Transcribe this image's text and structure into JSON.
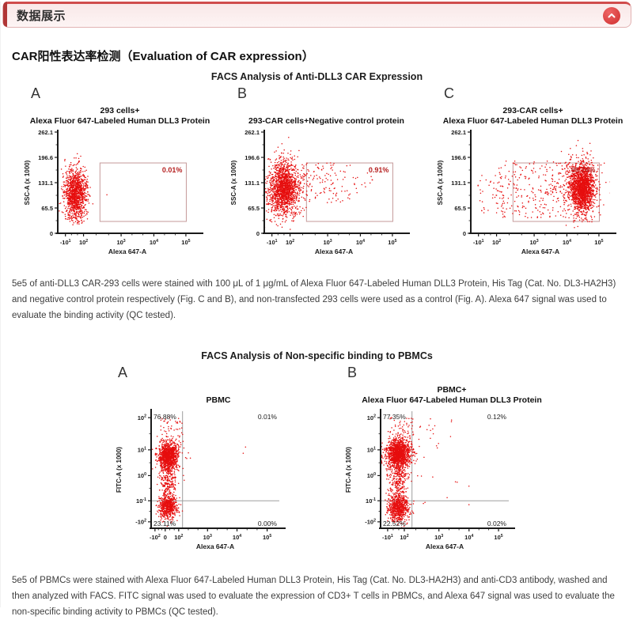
{
  "header": {
    "title": "数据展示",
    "collapse_icon": "chevron-up"
  },
  "colors": {
    "accent_red": "#b03636",
    "header_border": "#e2b3b3",
    "button_red": "#cf2e2e",
    "dot_red": "#e60e0e",
    "gate_stroke": "#c59a9a",
    "gate_percent_red": "#b51f1f"
  },
  "section": {
    "title": "CAR阳性表达率检测（Evaluation of CAR expression）"
  },
  "figure1": {
    "title": "FACS Analysis of Anti-DLL3 CAR Expression",
    "caption": "5e5 of anti-DLL3 CAR-293 cells were stained with 100 μL of 1 μg/mL of Alexa Fluor 647-Labeled Human DLL3 Protein, His Tag (Cat. No. DL3-HA2H3) and negative control protein respectively (Fig. C and B), and non-transfected 293 cells were used as a control (Fig. A). Alexa 647 signal was used to evaluate the binding activity (QC tested)."
  },
  "figure2": {
    "title": "FACS Analysis of Non-specific binding to PBMCs",
    "caption": "5e5 of PBMCs were stained with Alexa Fluor 647-Labeled Human DLL3 Protein, His Tag (Cat. No. DL3-HA2H3) and anti-CD3 antibody, washed and then analyzed with FACS. FITC signal was used to evaluate the expression of CD3+ T cells in PBMCs, and Alexa 647 signal was used to evaluate the non-specific binding activity to PBMCs (QC tested)."
  },
  "chart_data": [
    {
      "type": "scatter",
      "figure": 1,
      "panel": "A",
      "title_lines": {
        "t1": "293 cells+",
        "t2": "Alexa Fluor 647-Labeled Human DLL3 Protein"
      },
      "xlabel": "Alexa 647-A",
      "ylabel": "SSC-A (x 1000)",
      "yticks": [
        {
          "t": "262.1",
          "f": 0
        },
        {
          "t": "196.6",
          "f": 0.25
        },
        {
          "t": "131.1",
          "f": 0.5
        },
        {
          "t": "65.5",
          "f": 0.75
        },
        {
          "t": "0",
          "f": 1
        }
      ],
      "xticks": [
        {
          "b": "-10",
          "e": "1",
          "f": 0.055
        },
        {
          "b": "10",
          "e": "2",
          "f": 0.185
        },
        {
          "b": "10",
          "e": "3",
          "f": 0.455
        },
        {
          "b": "10",
          "e": "4",
          "f": 0.69
        },
        {
          "b": "10",
          "e": "5",
          "f": 0.92
        }
      ],
      "gate": {
        "x0": 0.303,
        "x1": 0.923,
        "y0": 0.305,
        "y1": 0.883,
        "label": "0.01%"
      },
      "dot_color": "#e60e0e",
      "clusters": [
        {
          "x": 0.13,
          "y": 0.6,
          "sx": 0.04,
          "sy": 0.115,
          "n": 1100
        },
        {
          "x": 0.13,
          "y": 0.8,
          "sx": 0.05,
          "sy": 0.06,
          "n": 60
        },
        {
          "u": 1,
          "x0": 0.07,
          "x1": 0.21,
          "y0": 0.35,
          "y1": 0.93,
          "n": 40
        },
        {
          "u": 1,
          "x0": 0.35,
          "x1": 0.38,
          "y0": 0.6,
          "y1": 0.63,
          "n": 1
        }
      ]
    },
    {
      "type": "scatter",
      "figure": 1,
      "panel": "B",
      "title_lines": {
        "t1": "",
        "t2": "293-CAR cells+Negative control protein"
      },
      "xlabel": "Alexa 647-A",
      "ylabel": "SSC-A (x 1000)",
      "yticks": [
        {
          "t": "262.1",
          "f": 0
        },
        {
          "t": "196.6",
          "f": 0.25
        },
        {
          "t": "131.1",
          "f": 0.5
        },
        {
          "t": "65.5",
          "f": 0.75
        },
        {
          "t": "0",
          "f": 1
        }
      ],
      "xticks": [
        {
          "b": "-10",
          "e": "1",
          "f": 0.055
        },
        {
          "b": "10",
          "e": "2",
          "f": 0.185
        },
        {
          "b": "10",
          "e": "3",
          "f": 0.455
        },
        {
          "b": "10",
          "e": "4",
          "f": 0.69
        },
        {
          "b": "10",
          "e": "5",
          "f": 0.92
        }
      ],
      "gate": {
        "x0": 0.303,
        "x1": 0.923,
        "y0": 0.305,
        "y1": 0.883,
        "label": "0.91%"
      },
      "dot_color": "#e60e0e",
      "clusters": [
        {
          "x": 0.14,
          "y": 0.55,
          "sx": 0.05,
          "sy": 0.13,
          "n": 1400
        },
        {
          "x": 0.14,
          "y": 0.58,
          "sx": 0.085,
          "sy": 0.17,
          "n": 200
        },
        {
          "u": 1,
          "x0": 0.25,
          "x1": 0.65,
          "y0": 0.3,
          "y1": 0.7,
          "n": 130
        },
        {
          "u": 1,
          "x0": 0.65,
          "x1": 0.78,
          "y0": 0.4,
          "y1": 0.6,
          "n": 12
        }
      ]
    },
    {
      "type": "scatter",
      "figure": 1,
      "panel": "C",
      "title_lines": {
        "t1": "293-CAR cells+",
        "t2": "Alexa Fluor 647-Labeled Human DLL3 Protein"
      },
      "xlabel": "Alexa 647-A",
      "ylabel": "SSC-A (x 1000)",
      "yticks": [
        {
          "t": "262.1",
          "f": 0
        },
        {
          "t": "196.6",
          "f": 0.25
        },
        {
          "t": "131.1",
          "f": 0.5
        },
        {
          "t": "65.5",
          "f": 0.75
        },
        {
          "t": "0",
          "f": 1
        }
      ],
      "xticks": [
        {
          "b": "-10",
          "e": "1",
          "f": 0.055
        },
        {
          "b": "10",
          "e": "2",
          "f": 0.185
        },
        {
          "b": "10",
          "e": "3",
          "f": 0.455
        },
        {
          "b": "10",
          "e": "4",
          "f": 0.69
        },
        {
          "b": "10",
          "e": "5",
          "f": 0.92
        }
      ],
      "gate": {
        "x0": 0.303,
        "x1": 0.923,
        "y0": 0.305,
        "y1": 0.883,
        "label": "99.74%"
      },
      "dot_color": "#e60e0e",
      "clusters": [
        {
          "x": 0.8,
          "y": 0.55,
          "sx": 0.045,
          "sy": 0.12,
          "n": 1600
        },
        {
          "x": 0.78,
          "y": 0.55,
          "sx": 0.08,
          "sy": 0.16,
          "n": 250
        },
        {
          "u": 1,
          "x0": 0.18,
          "x1": 0.7,
          "y0": 0.28,
          "y1": 0.85,
          "n": 260
        },
        {
          "u": 1,
          "x0": 0.05,
          "x1": 0.18,
          "y0": 0.4,
          "y1": 0.8,
          "n": 25
        }
      ]
    },
    {
      "type": "scatter",
      "figure": 2,
      "panel": "A",
      "title_lines": {
        "t1": "",
        "t2": "PBMC"
      },
      "xlabel": "Alexa 647-A",
      "ylabel": "FITC-A (x 1000)",
      "yticks": [
        {
          "b": "10",
          "e": "2",
          "f": 0.055
        },
        {
          "b": "10",
          "e": "1",
          "f": 0.33
        },
        {
          "b": "10",
          "e": "0",
          "f": 0.55
        },
        {
          "b": "10",
          "e": "-1",
          "f": 0.765
        },
        {
          "b": "-10",
          "e": "2",
          "f": 0.945
        }
      ],
      "xticks": [
        {
          "b": "-10",
          "e": "2",
          "f": 0.03
        },
        {
          "b": "0",
          "e": "",
          "f": 0.11
        },
        {
          "b": "10",
          "e": "2",
          "f": 0.215
        },
        {
          "b": "10",
          "e": "3",
          "f": 0.44
        },
        {
          "b": "10",
          "e": "4",
          "f": 0.67
        },
        {
          "b": "10",
          "e": "5",
          "f": 0.905
        }
      ],
      "quadrants": {
        "tl": "76.88%",
        "tr": "0.01%",
        "bl": "23.11%",
        "br": "0.00%",
        "vx": 0.245,
        "hy": 0.765
      },
      "dot_color": "#e60e0e",
      "clusters": [
        {
          "x": 0.135,
          "y": 0.38,
          "sx": 0.035,
          "sy": 0.055,
          "n": 1000
        },
        {
          "x": 0.135,
          "y": 0.38,
          "sx": 0.055,
          "sy": 0.09,
          "n": 150
        },
        {
          "x": 0.135,
          "y": 0.6,
          "sx": 0.03,
          "sy": 0.1,
          "n": 250
        },
        {
          "x": 0.13,
          "y": 0.82,
          "sx": 0.035,
          "sy": 0.05,
          "n": 550
        },
        {
          "u": 1,
          "x0": 0.07,
          "x1": 0.25,
          "y0": 0.05,
          "y1": 0.28,
          "n": 50
        },
        {
          "u": 1,
          "x0": 0.6,
          "x1": 0.9,
          "y0": 0.3,
          "y1": 0.5,
          "n": 2
        }
      ]
    },
    {
      "type": "scatter",
      "figure": 2,
      "panel": "B",
      "title_lines": {
        "t1": "PBMC+",
        "t2": "Alexa Fluor 647-Labeled Human DLL3 Protein"
      },
      "xlabel": "Alexa 647-A",
      "ylabel": "FITC-A (x 1000)",
      "yticks": [
        {
          "b": "10",
          "e": "2",
          "f": 0.055
        },
        {
          "b": "10",
          "e": "1",
          "f": 0.33
        },
        {
          "b": "10",
          "e": "0",
          "f": 0.55
        },
        {
          "b": "10",
          "e": "-1",
          "f": 0.765
        },
        {
          "b": "-10",
          "e": "2",
          "f": 0.945
        }
      ],
      "xticks": [
        {
          "b": "-10",
          "e": "1",
          "f": 0.055
        },
        {
          "b": "10",
          "e": "2",
          "f": 0.185
        },
        {
          "b": "10",
          "e": "3",
          "f": 0.455
        },
        {
          "b": "10",
          "e": "4",
          "f": 0.69
        },
        {
          "b": "10",
          "e": "5",
          "f": 0.92
        }
      ],
      "quadrants": {
        "tl": "77.35%",
        "tr": "0.12%",
        "bl": "22.52%",
        "br": "0.02%",
        "vx": 0.245,
        "hy": 0.765
      },
      "dot_color": "#e60e0e",
      "clusters": [
        {
          "x": 0.14,
          "y": 0.36,
          "sx": 0.045,
          "sy": 0.06,
          "n": 1200
        },
        {
          "x": 0.14,
          "y": 0.37,
          "sx": 0.07,
          "sy": 0.1,
          "n": 200
        },
        {
          "x": 0.14,
          "y": 0.6,
          "sx": 0.035,
          "sy": 0.11,
          "n": 300
        },
        {
          "x": 0.14,
          "y": 0.83,
          "sx": 0.04,
          "sy": 0.055,
          "n": 650
        },
        {
          "u": 1,
          "x0": 0.07,
          "x1": 0.26,
          "y0": 0.05,
          "y1": 0.26,
          "n": 45
        },
        {
          "u": 1,
          "x0": 0.3,
          "x1": 0.6,
          "y0": 0.05,
          "y1": 0.35,
          "n": 16
        },
        {
          "u": 1,
          "x0": 0.3,
          "x1": 0.7,
          "y0": 0.5,
          "y1": 0.8,
          "n": 8
        }
      ]
    }
  ]
}
